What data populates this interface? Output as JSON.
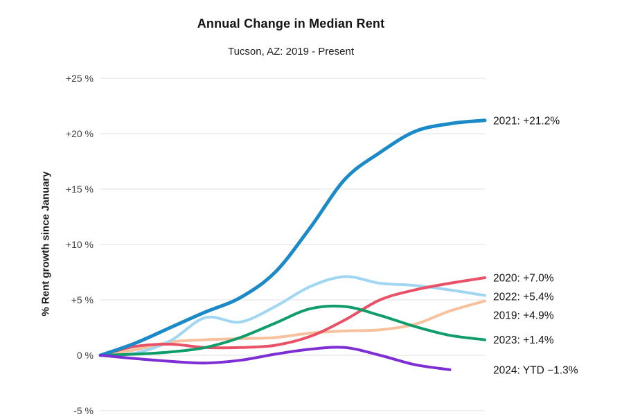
{
  "header": {
    "title": "Annual Change in Median Rent",
    "subtitle": "Tucson, AZ: 2019 - Present"
  },
  "chart_data": {
    "type": "line",
    "title": "Annual Change in Median Rent",
    "subtitle": "Tucson, AZ: 2019 - Present",
    "xlabel": "",
    "ylabel": "% Rent growth since January",
    "x_tick_labels_visible": false,
    "points_per_full_year": 12,
    "ylim": [
      -6.2,
      26
    ],
    "grid": true,
    "legend_position": "right-of-line-ends",
    "yticks": [
      {
        "label": "+25 %",
        "value": 25
      },
      {
        "label": "+20 %",
        "value": 20
      },
      {
        "label": "+15 %",
        "value": 15
      },
      {
        "label": "+10 %",
        "value": 10
      },
      {
        "label": "+5 %",
        "value": 5
      },
      {
        "label": "0 %",
        "value": 0
      },
      {
        "label": "-5 %",
        "value": -5
      }
    ],
    "series": [
      {
        "name": "2019",
        "end_label": "2019: +4.9%",
        "final_value": 4.9,
        "color": "#f8c19e",
        "line_width": 4,
        "values": [
          0,
          0.5,
          1.2,
          1.4,
          1.5,
          1.6,
          2.0,
          2.2,
          2.3,
          2.8,
          4.0,
          4.9
        ]
      },
      {
        "name": "2022",
        "end_label": "2022: +5.4%",
        "final_value": 5.4,
        "color": "#a0d6f2",
        "line_width": 4,
        "values": [
          0,
          0.2,
          1.3,
          3.4,
          3.0,
          4.4,
          6.2,
          7.1,
          6.5,
          6.3,
          5.9,
          5.4
        ]
      },
      {
        "name": "2020",
        "end_label": "2020: +7.0%",
        "final_value": 7.0,
        "color": "#e85166",
        "line_width": 4,
        "values": [
          0,
          0.8,
          1.0,
          0.7,
          0.7,
          0.9,
          1.7,
          3.2,
          5.0,
          5.9,
          6.5,
          7.0
        ]
      },
      {
        "name": "2023",
        "end_label": "2023: +1.4%",
        "final_value": 1.4,
        "color": "#109d6a",
        "line_width": 4,
        "values": [
          0,
          0.1,
          0.3,
          0.7,
          1.6,
          2.9,
          4.2,
          4.4,
          3.6,
          2.6,
          1.8,
          1.4
        ]
      },
      {
        "name": "2021",
        "end_label": "2021: +21.2%",
        "final_value": 21.2,
        "color": "#1c8ac7",
        "line_width": 5,
        "values": [
          0,
          1.1,
          2.5,
          3.9,
          5.2,
          7.5,
          11.5,
          15.9,
          18.3,
          20.2,
          20.9,
          21.2
        ]
      },
      {
        "name": "2024",
        "end_label": "2024: YTD −1.3%",
        "final_value": -1.3,
        "color": "#7d2fd3",
        "line_width": 4,
        "values": [
          0,
          -0.3,
          -0.55,
          -0.7,
          -0.45,
          0.1,
          0.55,
          0.7,
          0.0,
          -0.85,
          -1.3
        ]
      }
    ]
  }
}
